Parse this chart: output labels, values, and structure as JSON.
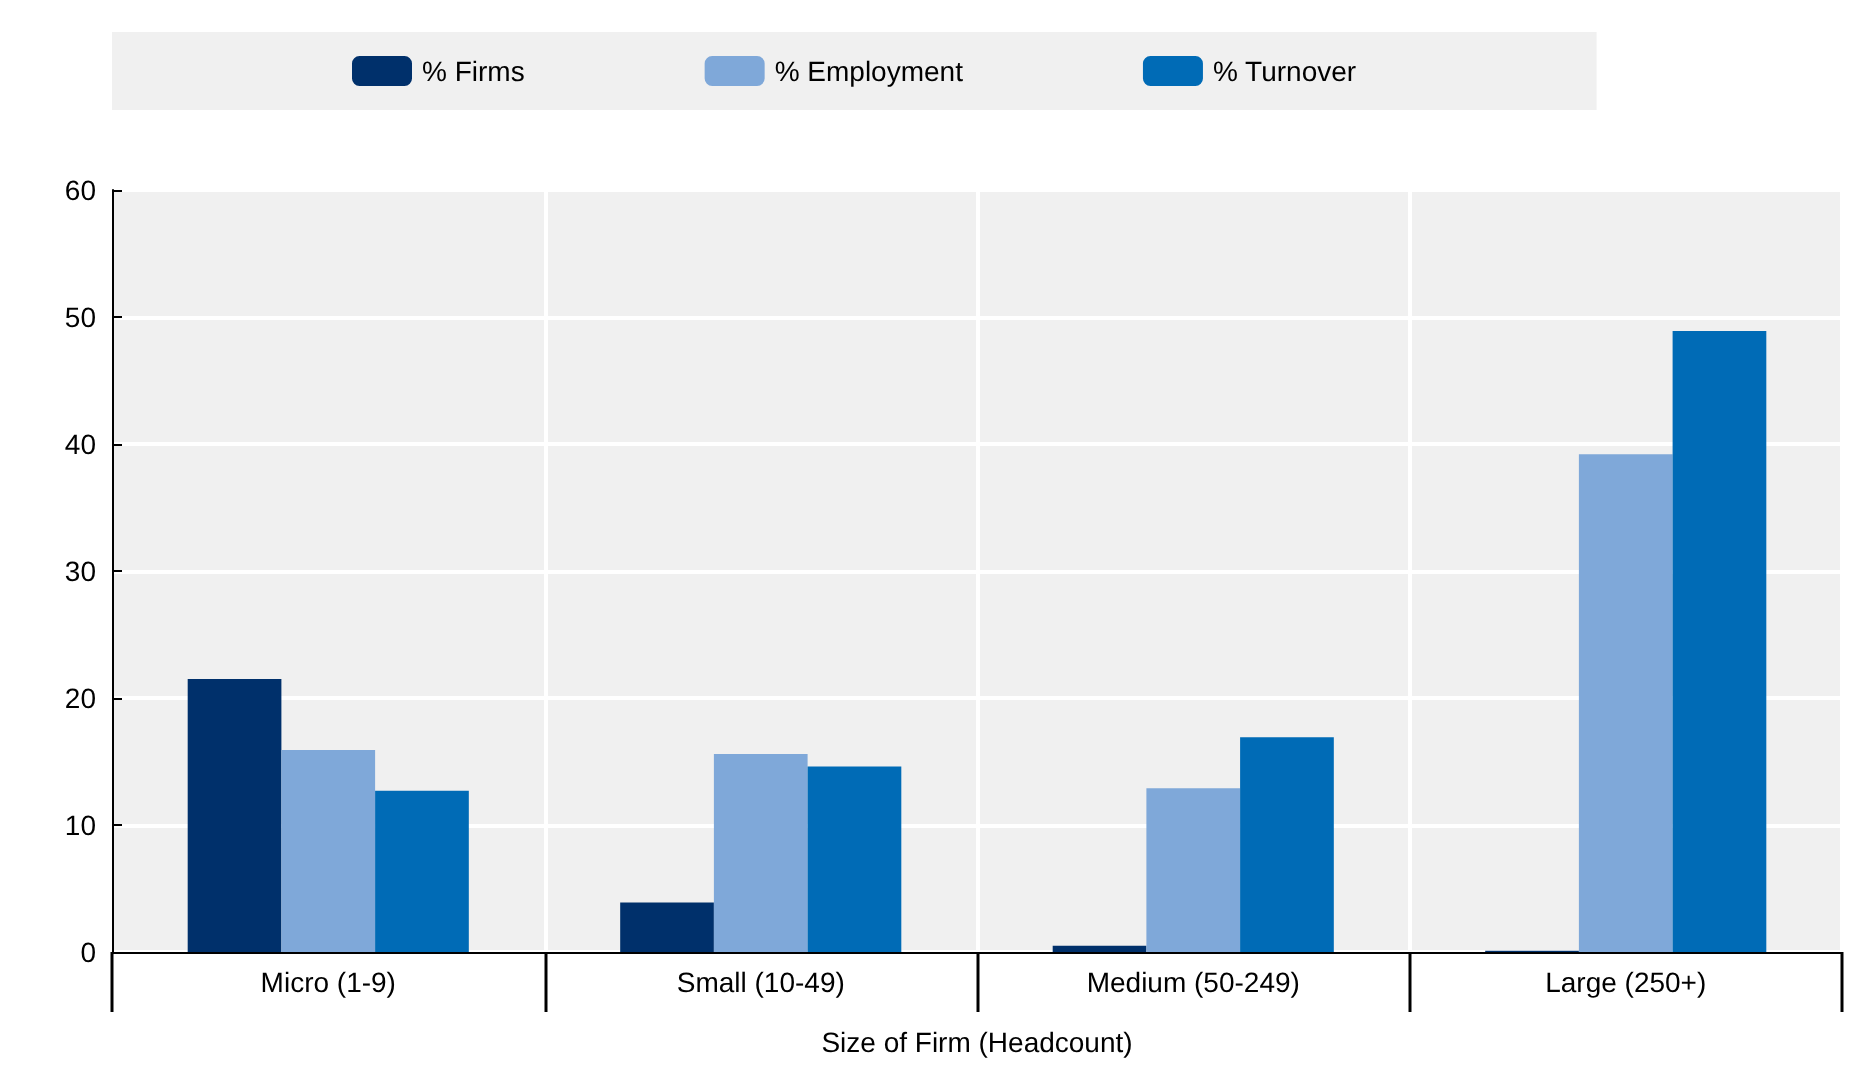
{
  "chart_data": {
    "type": "bar",
    "xlabel": "Size of Firm (Headcount)",
    "categories": [
      "Micro (1-9)",
      "Small (10-49)",
      "Medium (50-249)",
      "Large (250+)"
    ],
    "series": [
      {
        "name": "% Firms",
        "color": "#00306b",
        "values": [
          21.5,
          3.9,
          0.5,
          0.1
        ]
      },
      {
        "name": "% Employment",
        "color": "#7fa8d9",
        "values": [
          15.9,
          15.6,
          12.9,
          39.2
        ]
      },
      {
        "name": "% Turnover",
        "color": "#006bb6",
        "values": [
          12.7,
          14.6,
          16.9,
          48.9
        ]
      }
    ],
    "ylim": [
      0,
      60
    ],
    "yticks": [
      0,
      10,
      20,
      30,
      40,
      50,
      60
    ],
    "grid": true,
    "legend": "top"
  }
}
